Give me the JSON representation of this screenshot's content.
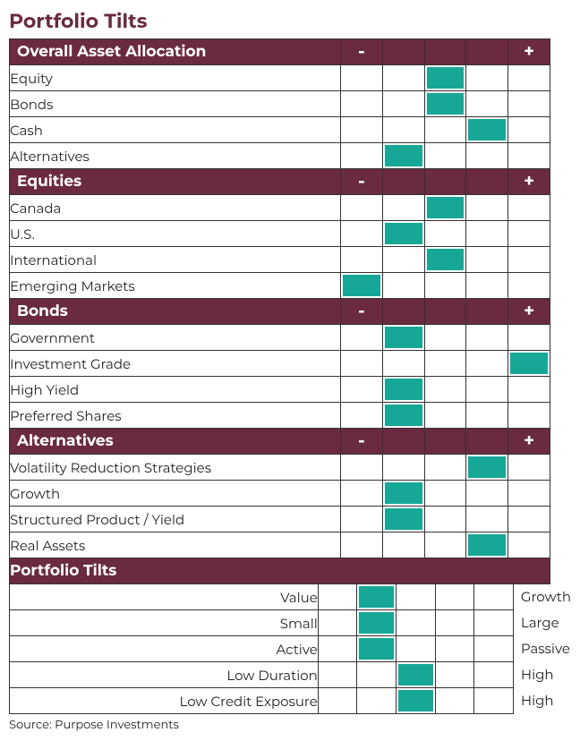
{
  "title": "Portfolio Tilts",
  "colors": {
    "header_bg": "#6a2a40",
    "header_text": "#ffffff",
    "fill": "#16a797",
    "border": "#333333",
    "bg": "#ffffff",
    "text": "#222222"
  },
  "scale_width_cells": 5,
  "sections": [
    {
      "name": "Overall Asset Allocation",
      "minus": "-",
      "plus": "+",
      "rows": [
        {
          "label": "Equity",
          "pos": 3
        },
        {
          "label": "Bonds",
          "pos": 3
        },
        {
          "label": "Cash",
          "pos": 4
        },
        {
          "label": "Alternatives",
          "pos": 2
        }
      ]
    },
    {
      "name": "Equities",
      "minus": "-",
      "plus": "+",
      "rows": [
        {
          "label": "Canada",
          "pos": 3
        },
        {
          "label": "U.S.",
          "pos": 2
        },
        {
          "label": "International",
          "pos": 3
        },
        {
          "label": "Emerging Markets",
          "pos": 1
        }
      ]
    },
    {
      "name": "Bonds",
      "minus": "-",
      "plus": "+",
      "rows": [
        {
          "label": "Government",
          "pos": 2
        },
        {
          "label": "Investment Grade",
          "pos": 5
        },
        {
          "label": "High Yield",
          "pos": 2
        },
        {
          "label": "Preferred Shares",
          "pos": 2
        }
      ]
    },
    {
      "name": "Alternatives",
      "minus": "-",
      "plus": "+",
      "rows": [
        {
          "label": "Volatility Reduction Strategies",
          "pos": 4
        },
        {
          "label": "Growth",
          "pos": 2
        },
        {
          "label": "Structured Product / Yield",
          "pos": 2
        },
        {
          "label": "Real Assets",
          "pos": 4
        }
      ]
    }
  ],
  "tilts_section": {
    "name": "Portfolio Tilts",
    "rows": [
      {
        "left": "Value",
        "pos": 2,
        "right": "Growth"
      },
      {
        "left": "Small",
        "pos": 2,
        "right": "Large"
      },
      {
        "left": "Active",
        "pos": 2,
        "right": "Passive"
      },
      {
        "left": "Low Duration",
        "pos": 3,
        "right": "High"
      },
      {
        "left": "Low Credit Exposure",
        "pos": 3,
        "right": "High"
      }
    ]
  },
  "source": "Source: Purpose Investments"
}
